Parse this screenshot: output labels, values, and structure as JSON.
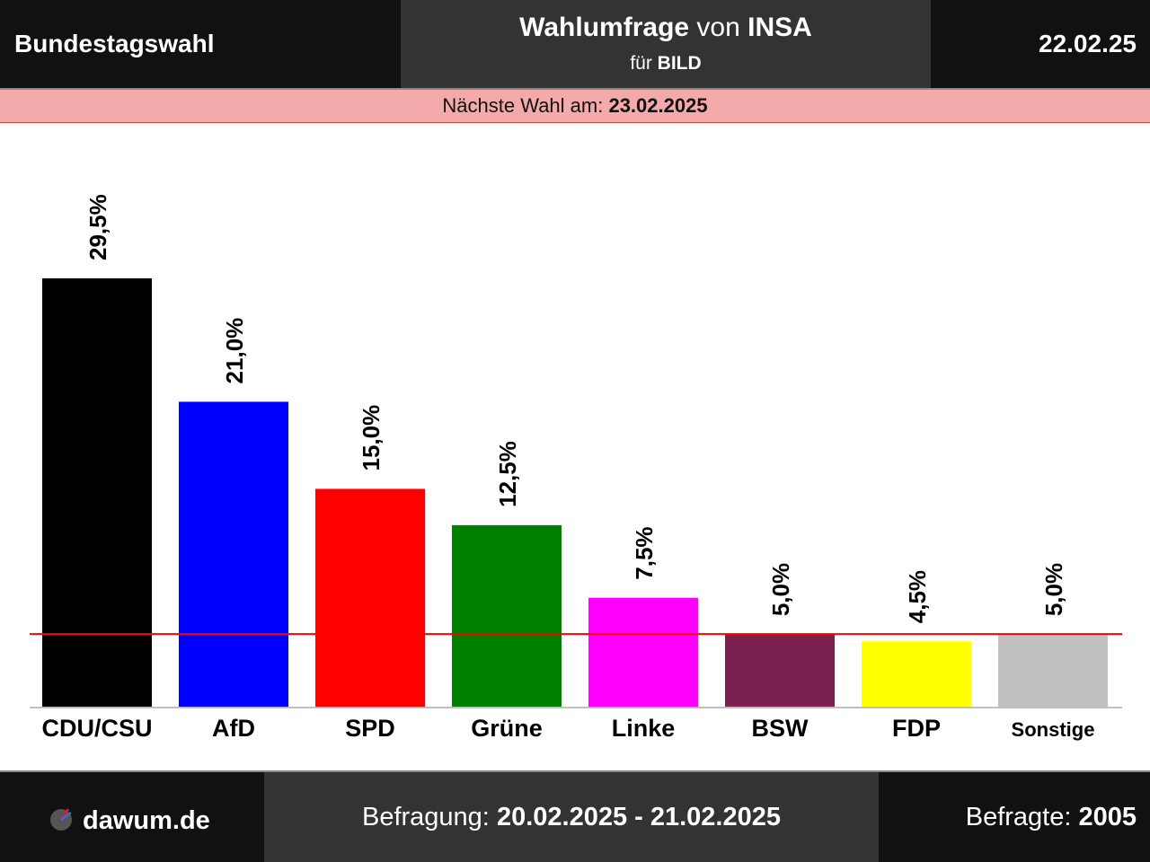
{
  "header": {
    "left_title": "Bundestagswahl",
    "title_bold_1": "Wahlumfrage",
    "title_connector": " von ",
    "title_bold_2": "INSA",
    "subtitle_prefix": "für ",
    "subtitle_bold": "BILD",
    "date": "22.02.25"
  },
  "banner": {
    "label": "Nächste Wahl am: ",
    "date": "23.02.2025"
  },
  "chart_data": {
    "type": "bar",
    "categories": [
      "CDU/CSU",
      "AfD",
      "SPD",
      "Grüne",
      "Linke",
      "BSW",
      "FDP",
      "Sonstige"
    ],
    "values": [
      29.5,
      21.0,
      15.0,
      12.5,
      7.5,
      5.0,
      4.5,
      5.0
    ],
    "value_labels": [
      "29,5%",
      "21,0%",
      "15,0%",
      "12,5%",
      "7,5%",
      "5,0%",
      "4,5%",
      "5,0%"
    ],
    "colors": [
      "#000000",
      "#0000ff",
      "#ff0000",
      "#008000",
      "#ff00ff",
      "#7a2150",
      "#ffff00",
      "#c0c0c0"
    ],
    "threshold": 5.0,
    "threshold_color": "#ff0000",
    "ylim": [
      0,
      29.5
    ]
  },
  "footer": {
    "brand": "dawum.de",
    "survey_label": "Befragung: ",
    "survey_dates": "20.02.2025 - 21.02.2025",
    "respondents_label": "Befragte: ",
    "respondents_count": "2005"
  }
}
